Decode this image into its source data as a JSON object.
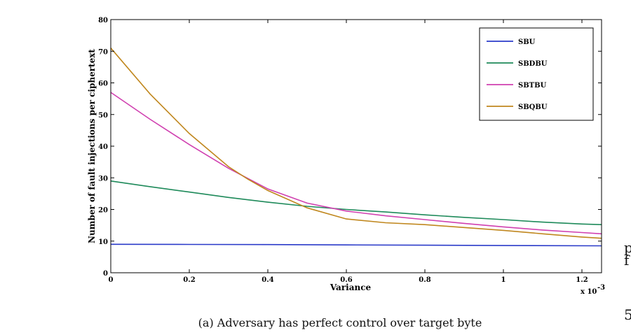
{
  "chart_data": {
    "type": "line",
    "xlabel": "Variance",
    "ylabel": "Number of fault injections per ciphertext",
    "x_multiplier": "x 10",
    "x_multiplier_exp": "-3",
    "xlim": [
      0,
      1.25
    ],
    "ylim": [
      0,
      80
    ],
    "x_ticks": [
      0,
      0.2,
      0.4,
      0.6,
      0.8,
      1,
      1.2
    ],
    "x_tick_labels": [
      "0",
      "0.2",
      "0.4",
      "0.6",
      "0.8",
      "1",
      "1.2"
    ],
    "y_ticks": [
      0,
      10,
      20,
      30,
      40,
      50,
      60,
      70,
      80
    ],
    "y_tick_labels": [
      "0",
      "10",
      "20",
      "30",
      "40",
      "50",
      "60",
      "70",
      "80"
    ],
    "grid": false,
    "legend_position": "top-right",
    "series": [
      {
        "name": "SBU",
        "color": "#2b3bc9",
        "x": [
          0,
          0.2,
          0.4,
          0.6,
          0.8,
          1.0,
          1.25
        ],
        "y": [
          9.0,
          8.95,
          8.9,
          8.8,
          8.7,
          8.6,
          8.5
        ]
      },
      {
        "name": "SBDBU",
        "color": "#1e8a5a",
        "x": [
          0,
          0.1,
          0.2,
          0.3,
          0.4,
          0.5,
          0.6,
          0.7,
          0.8,
          0.9,
          1.0,
          1.1,
          1.2,
          1.25
        ],
        "y": [
          29.0,
          27.2,
          25.5,
          23.8,
          22.3,
          21.0,
          20.0,
          19.2,
          18.3,
          17.5,
          16.8,
          16.0,
          15.4,
          15.2
        ]
      },
      {
        "name": "SBTBU",
        "color": "#d040b0",
        "x": [
          0,
          0.1,
          0.2,
          0.3,
          0.4,
          0.5,
          0.6,
          0.7,
          0.8,
          0.9,
          1.0,
          1.1,
          1.2,
          1.25
        ],
        "y": [
          57.0,
          48.5,
          40.5,
          33.0,
          26.5,
          22.0,
          19.5,
          18.0,
          16.8,
          15.6,
          14.5,
          13.5,
          12.7,
          12.3
        ]
      },
      {
        "name": "SBQBU",
        "color": "#c0871e",
        "x": [
          0,
          0.1,
          0.2,
          0.3,
          0.35,
          0.4,
          0.5,
          0.6,
          0.7,
          0.8,
          0.9,
          1.0,
          1.1,
          1.2,
          1.25
        ],
        "y": [
          71.0,
          56.5,
          44.0,
          33.5,
          29.5,
          26.0,
          20.5,
          17.0,
          15.8,
          15.2,
          14.3,
          13.4,
          12.3,
          11.3,
          10.9
        ]
      }
    ]
  },
  "caption": "(a) Adversary has perfect control over target byte",
  "side_text": {
    "p": "p",
    "f": "f",
    "five": "5"
  }
}
